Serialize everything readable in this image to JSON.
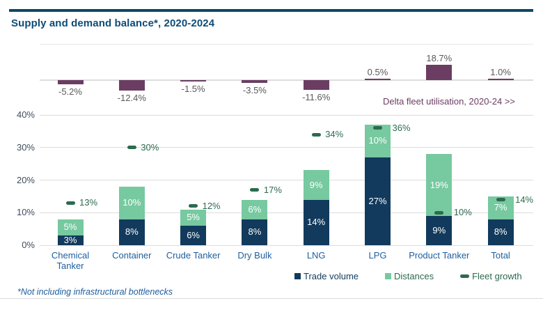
{
  "header": {
    "title": "Supply and demand balance*, 2020-2024"
  },
  "footnote": "*Not including infrastructural bottlenecks",
  "chart_data": {
    "type": "bar",
    "title": "Supply and demand balance*, 2020-2024",
    "subtitle_note": "Delta fleet utilisation, 2020-24 >>",
    "unit": "%",
    "stacked": true,
    "categories": [
      "Chemical Tanker",
      "Container",
      "Crude Tanker",
      "Dry Bulk",
      "LNG",
      "LPG",
      "Product Tanker",
      "Total"
    ],
    "tick_labels": [
      "Chemical\nTanker",
      "Container",
      "Crude Tanker",
      "Dry Bulk",
      "LNG",
      "LPG",
      "Product Tanker",
      "Total"
    ],
    "series": [
      {
        "name": "Trade volume",
        "type": "stacked-bar",
        "color": "#123a5c",
        "values": [
          3,
          8,
          6,
          8,
          14,
          27,
          9,
          8
        ]
      },
      {
        "name": "Distances",
        "type": "stacked-bar",
        "color": "#77c9a0",
        "values": [
          5,
          10,
          5,
          6,
          9,
          10,
          19,
          7
        ]
      },
      {
        "name": "Fleet growth",
        "type": "dash-marker",
        "color": "#2d6a4e",
        "values": [
          13,
          30,
          12,
          17,
          34,
          36,
          10,
          14
        ]
      },
      {
        "name": "Delta fleet utilisation, 2020-24",
        "type": "top-panel-bar",
        "color": "#6b3d63",
        "values": [
          -5.2,
          -12.4,
          -1.5,
          -3.5,
          -11.6,
          0.5,
          18.7,
          1.0
        ]
      }
    ],
    "y_axis": {
      "ticks": [
        "0%",
        "10%",
        "20%",
        "30%",
        "40%"
      ],
      "tick_values": [
        0,
        10,
        20,
        30,
        40
      ],
      "lim": [
        0,
        42
      ],
      "grid": true
    },
    "legend_position": "bottom",
    "legend": [
      {
        "label": "Trade volume",
        "swatch": "square",
        "color": "#123a5c",
        "text_color": "#123a5c"
      },
      {
        "label": "Distances",
        "swatch": "square",
        "color": "#77c9a0",
        "text_color": "#2d6a4e"
      },
      {
        "label": "Fleet growth",
        "swatch": "dash",
        "color": "#2d6a4e",
        "text_color": "#2d6a4e"
      }
    ]
  },
  "colors": {
    "title_rule": "#0d4768",
    "title_text": "#0d4c77",
    "category_text": "#1d5e9e",
    "axis_text": "#3e4d5c",
    "grid": "#dcdcdc",
    "mini_label_text": "#595959",
    "delta_note_text": "#6b3d63",
    "white_label": "#ffffff"
  }
}
